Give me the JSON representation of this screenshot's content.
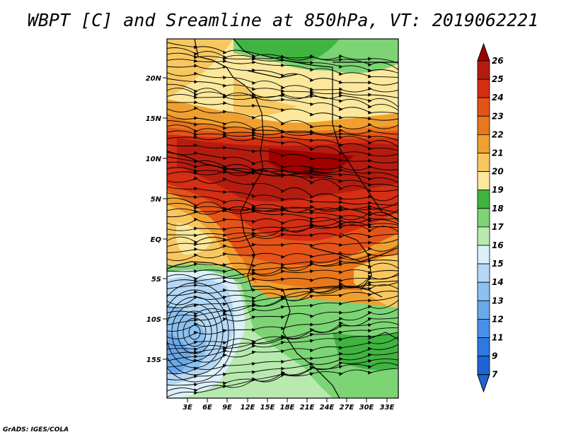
{
  "title": "WBPT [C] and Sreamline at 850hPa, VT: 2019062221",
  "credit": "GrADS: IGES/COLA",
  "colors": {
    "c7": "#1e64d4",
    "c9": "#2e78e0",
    "c11": "#4a90e8",
    "c12": "#6aa8ec",
    "c13": "#8cc0f0",
    "c14": "#b4d8f6",
    "c15": "#dcf0fa",
    "c16": "#b8eab0",
    "c17": "#7cd474",
    "c18": "#40b440",
    "c19": "#fce89c",
    "c20": "#f8c860",
    "c21": "#f0a030",
    "c22": "#e8781c",
    "c23": "#e45418",
    "c24": "#d42e14",
    "c25": "#b41c10",
    "c26": "#a00000"
  },
  "map": {
    "lat_labels": [
      "20N",
      "15N",
      "10N",
      "5N",
      "EQ",
      "5S",
      "10S",
      "15S"
    ],
    "lon_labels": [
      "3E",
      "6E",
      "9E",
      "12E",
      "15E",
      "18E",
      "21E",
      "24E",
      "27E",
      "30E",
      "33E"
    ]
  },
  "colorbar": {
    "labels": [
      "26",
      "25",
      "24",
      "23",
      "22",
      "21",
      "20",
      "19",
      "18",
      "17",
      "16",
      "15",
      "14",
      "13",
      "12",
      "11",
      "9",
      "7"
    ]
  }
}
